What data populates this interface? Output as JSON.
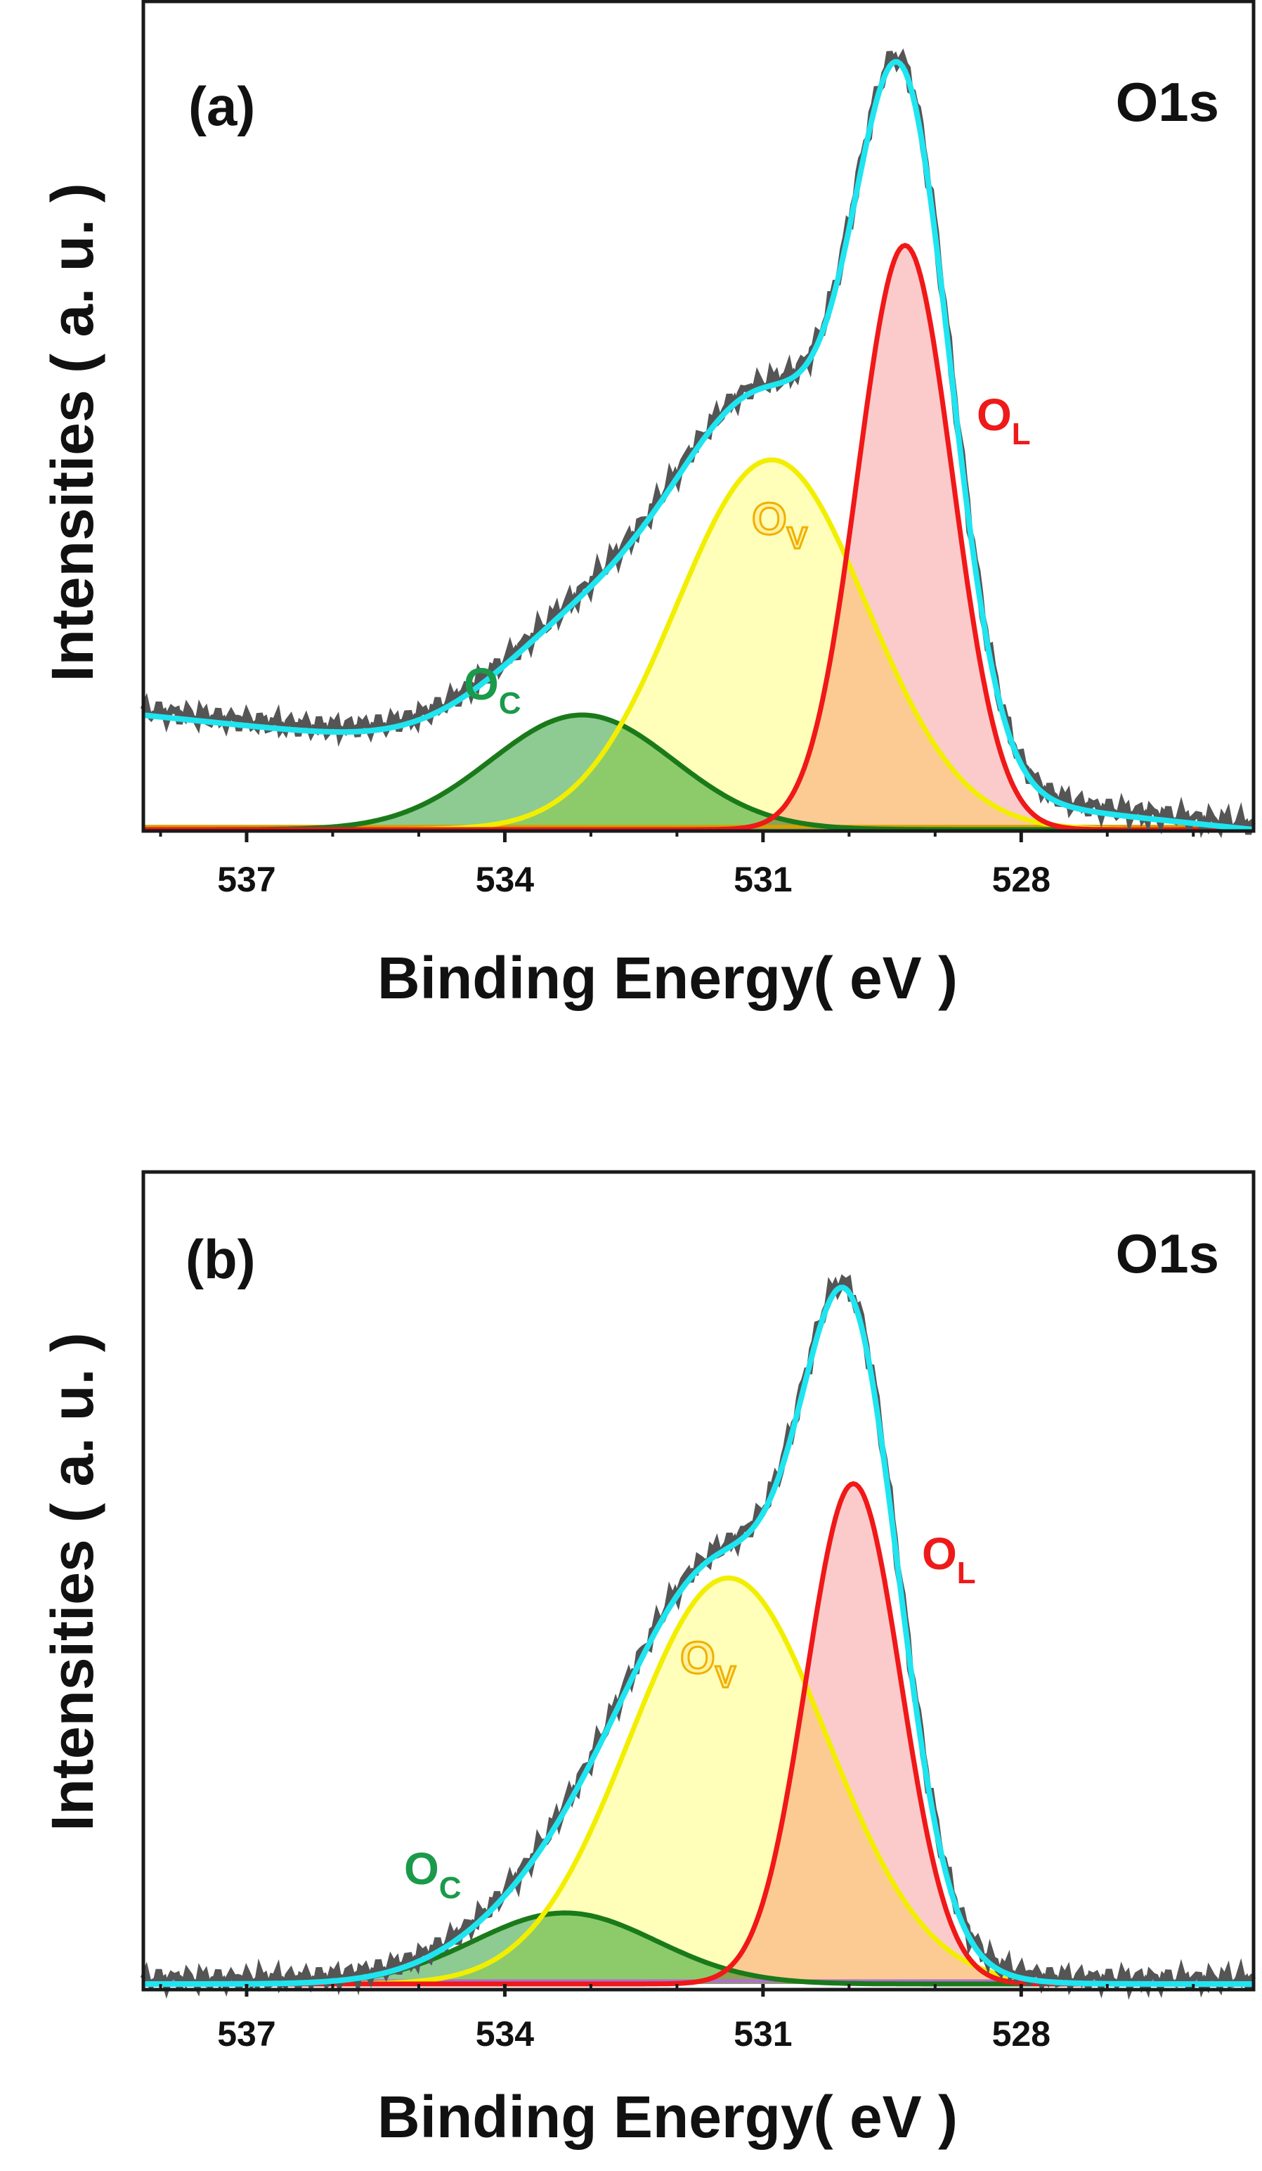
{
  "figure": {
    "panels": [
      {
        "id": "a",
        "label": "(a)"
      },
      {
        "id": "b",
        "label": "(b)"
      }
    ]
  },
  "chart_data": [
    {
      "type": "area",
      "panel": "(a)",
      "title": "O1s",
      "xlabel": "Binding Energy( eV )",
      "ylabel": "Intensities ( a. u. )",
      "xlim": [
        538.2,
        525.3
      ],
      "x_reversed": true,
      "ylim": [
        0,
        1.12
      ],
      "xticks": [
        537,
        534,
        531,
        528
      ],
      "xtick_labels": [
        "537",
        "534",
        "531",
        "528"
      ],
      "grid": false,
      "legend": "none",
      "background_slope": 0.012,
      "components": [
        {
          "name": "O_C",
          "label_main": "O",
          "label_sub": "C",
          "center": 533.1,
          "fwhm": 2.5,
          "height": 0.155,
          "stroke": "#1a7a1a",
          "fill": "#41a84a",
          "label_color": "#1a9a4a"
        },
        {
          "name": "O_V",
          "label_main": "O",
          "label_sub": "V",
          "center": 530.9,
          "fwhm": 2.6,
          "height": 0.5,
          "stroke": "#f2ee00",
          "fill": "#ffff8a",
          "label_color": "#f0b800"
        },
        {
          "name": "O_L",
          "label_main": "O",
          "label_sub": "L",
          "center": 529.35,
          "fwhm": 1.3,
          "height": 0.79,
          "stroke": "#f01818",
          "fill": "#f8a8a8",
          "label_color": "#ee1a1a"
        }
      ],
      "envelope": {
        "name": "fitted envelope",
        "stroke": "#1ee5f0"
      },
      "raw_data": {
        "name": "raw spectrum",
        "stroke": "#555555"
      }
    },
    {
      "type": "area",
      "panel": "(b)",
      "title": "O1s",
      "xlabel": "Binding Energy( eV )",
      "ylabel": "Intensities ( a. u. )",
      "xlim": [
        538.2,
        525.3
      ],
      "x_reversed": true,
      "ylim": [
        0,
        1.12
      ],
      "xticks": [
        537,
        534,
        531,
        528
      ],
      "xtick_labels": [
        "537",
        "534",
        "531",
        "528"
      ],
      "grid": false,
      "legend": "none",
      "background_slope": 0.0,
      "components": [
        {
          "name": "O_C",
          "label_main": "O",
          "label_sub": "C",
          "center": 533.3,
          "fwhm": 2.5,
          "height": 0.098,
          "stroke": "#1a7a1a",
          "fill": "#41a84a",
          "label_color": "#1a9a4a"
        },
        {
          "name": "O_V",
          "label_main": "O",
          "label_sub": "V",
          "center": 531.4,
          "fwhm": 2.7,
          "height": 0.56,
          "stroke": "#f2ee00",
          "fill": "#ffff8a",
          "label_color": "#f0b800"
        },
        {
          "name": "O_L",
          "label_main": "O",
          "label_sub": "L",
          "center": 529.95,
          "fwhm": 1.3,
          "height": 0.69,
          "stroke": "#f01818",
          "fill": "#f8a8a8",
          "label_color": "#ee1a1a"
        }
      ],
      "envelope": {
        "name": "fitted envelope",
        "stroke": "#1ee5f0"
      },
      "raw_data": {
        "name": "raw spectrum",
        "stroke": "#555555"
      }
    }
  ]
}
